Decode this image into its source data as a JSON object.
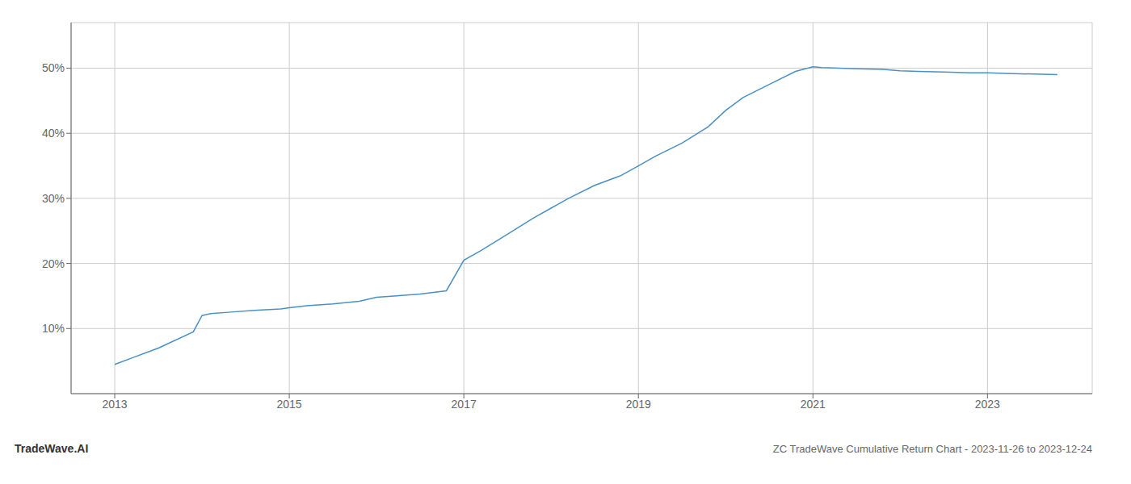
{
  "chart_data": {
    "type": "line",
    "title": "ZC TradeWave Cumulative Return Chart - 2023-11-26 to 2023-12-24",
    "annotations": [
      "TradeWave.AI"
    ],
    "x": [
      2013.0,
      2013.2,
      2013.5,
      2013.9,
      2014.0,
      2014.1,
      2014.3,
      2014.6,
      2014.9,
      2015.0,
      2015.2,
      2015.5,
      2015.8,
      2016.0,
      2016.2,
      2016.5,
      2016.8,
      2017.0,
      2017.2,
      2017.5,
      2017.8,
      2018.0,
      2018.2,
      2018.5,
      2018.8,
      2019.0,
      2019.2,
      2019.5,
      2019.8,
      2020.0,
      2020.2,
      2020.5,
      2020.8,
      2021.0,
      2021.1,
      2021.3,
      2021.5,
      2021.8,
      2022.0,
      2022.2,
      2022.5,
      2022.8,
      2023.0,
      2023.2,
      2023.8
    ],
    "values": [
      4.5,
      5.5,
      7.0,
      9.5,
      12.0,
      12.3,
      12.5,
      12.8,
      13.0,
      13.2,
      13.5,
      13.8,
      14.2,
      14.8,
      15.0,
      15.3,
      15.8,
      20.5,
      22.0,
      24.5,
      27.0,
      28.5,
      30.0,
      32.0,
      33.5,
      35.0,
      36.5,
      38.5,
      41.0,
      43.5,
      45.5,
      47.5,
      49.5,
      50.2,
      50.1,
      50.0,
      49.9,
      49.8,
      49.6,
      49.5,
      49.4,
      49.3,
      49.3,
      49.2,
      49.0
    ],
    "color": "#4a90c4",
    "xlim": [
      2012.5,
      2024.2
    ],
    "xticks": [
      2013,
      2015,
      2017,
      2019,
      2021,
      2023
    ],
    "ylim": [
      0,
      57
    ],
    "yticks": [
      {
        "value": 10,
        "label": "10%"
      },
      {
        "value": 20,
        "label": "20%"
      },
      {
        "value": 30,
        "label": "30%"
      },
      {
        "value": 40,
        "label": "40%"
      },
      {
        "value": 50,
        "label": "50%"
      }
    ],
    "grid": true
  }
}
